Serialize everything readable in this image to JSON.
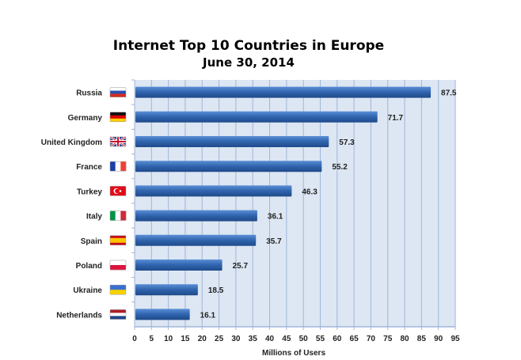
{
  "chart_data": {
    "type": "bar",
    "orientation": "horizontal",
    "title": "Internet Top 10 Countries in Europe",
    "subtitle": "June 30, 2014",
    "xlabel": "Millions of Users",
    "ylabel": "",
    "xlim": [
      0,
      95
    ],
    "xticks": [
      "0",
      "5",
      "10",
      "15",
      "20",
      "25",
      "30",
      "35",
      "40",
      "45",
      "50",
      "55",
      "60",
      "65",
      "70",
      "75",
      "80",
      "85",
      "90",
      "95"
    ],
    "grid": true,
    "legend": "none",
    "categories": [
      "Russia",
      "Germany",
      "United Kingdom",
      "France",
      "Turkey",
      "Italy",
      "Spain",
      "Poland",
      "Ukraine",
      "Netherlands"
    ],
    "values": [
      87.5,
      71.7,
      57.3,
      55.2,
      46.3,
      36.1,
      35.7,
      25.7,
      18.5,
      16.1
    ],
    "data_labels": [
      "87.5",
      "71.7",
      "57.3",
      "55.2",
      "46.3",
      "36.1",
      "35.7",
      "25.7",
      "18.5",
      "16.1"
    ],
    "flag_icons": [
      "russia-flag",
      "germany-flag",
      "uk-flag",
      "france-flag",
      "turkey-flag",
      "italy-flag",
      "spain-flag",
      "poland-flag",
      "ukraine-flag",
      "netherlands-flag"
    ],
    "colors": {
      "bar": "#2f63ad",
      "bar_light": "#5a8fd6",
      "plot_bg": "#dde6f3",
      "grid": "#9fb6d8"
    }
  }
}
